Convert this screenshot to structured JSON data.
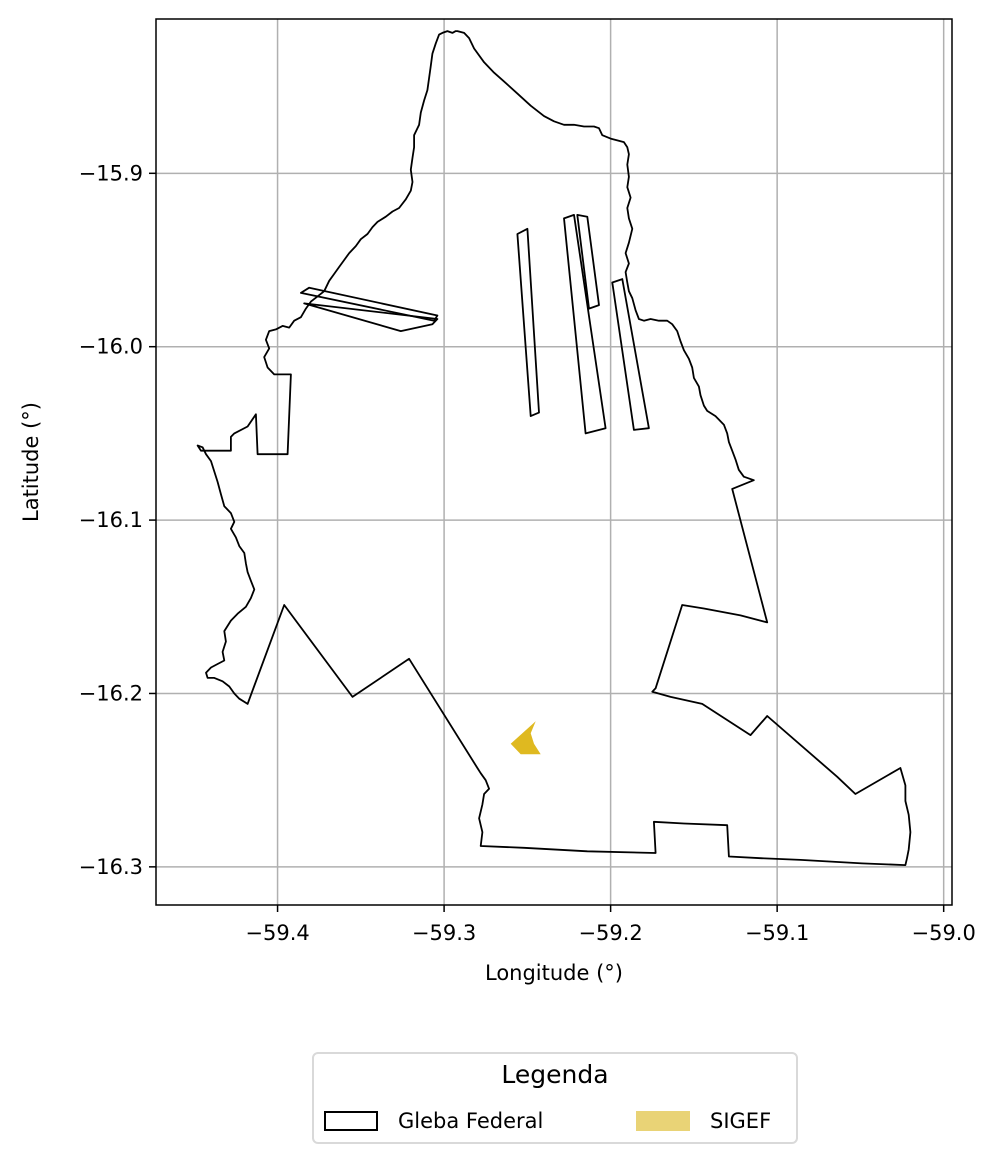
{
  "chart_data": {
    "type": "map",
    "xlabel": "Longitude (°)",
    "ylabel": "Latitude (°)",
    "xlim": [
      -59.473,
      -58.995
    ],
    "ylim": [
      -16.322,
      -15.811
    ],
    "xticks": [
      -59.4,
      -59.3,
      -59.2,
      -59.1,
      -59.0
    ],
    "yticks": [
      -15.9,
      -16.0,
      -16.1,
      -16.2,
      -16.3
    ],
    "xtick_labels": [
      "−59.4",
      "−59.3",
      "−59.2",
      "−59.1",
      "−59.0"
    ],
    "ytick_labels": [
      "−15.9",
      "−16.0",
      "−16.1",
      "−16.2",
      "−16.3"
    ],
    "grid": true,
    "legend_placement": "below",
    "layers": [
      {
        "name": "Gleba Federal",
        "fill": "none",
        "stroke": "#000000",
        "polygons": [
          [
            [
              -59.301,
              -15.819
            ],
            [
              -59.298,
              -15.818
            ],
            [
              -59.295,
              -15.819
            ],
            [
              -59.293,
              -15.818
            ],
            [
              -59.292,
              -15.818
            ],
            [
              -59.288,
              -15.819
            ],
            [
              -59.285,
              -15.822
            ],
            [
              -59.282,
              -15.828
            ],
            [
              -59.276,
              -15.836
            ],
            [
              -59.27,
              -15.842
            ],
            [
              -59.264,
              -15.847
            ],
            [
              -59.256,
              -15.854
            ],
            [
              -59.248,
              -15.861
            ],
            [
              -59.24,
              -15.867
            ],
            [
              -59.234,
              -15.87
            ],
            [
              -59.228,
              -15.872
            ],
            [
              -59.222,
              -15.872
            ],
            [
              -59.216,
              -15.873
            ],
            [
              -59.21,
              -15.873
            ],
            [
              -59.207,
              -15.874
            ],
            [
              -59.205,
              -15.878
            ],
            [
              -59.2,
              -15.88
            ],
            [
              -59.196,
              -15.881
            ],
            [
              -59.192,
              -15.882
            ],
            [
              -59.19,
              -15.885
            ],
            [
              -59.189,
              -15.889
            ],
            [
              -59.19,
              -15.895
            ],
            [
              -59.189,
              -15.902
            ],
            [
              -59.19,
              -15.908
            ],
            [
              -59.188,
              -15.914
            ],
            [
              -59.19,
              -15.92
            ],
            [
              -59.189,
              -15.926
            ],
            [
              -59.187,
              -15.932
            ],
            [
              -59.189,
              -15.94
            ],
            [
              -59.191,
              -15.946
            ],
            [
              -59.189,
              -15.952
            ],
            [
              -59.191,
              -15.957
            ],
            [
              -59.19,
              -15.963
            ],
            [
              -59.189,
              -15.968
            ],
            [
              -59.187,
              -15.972
            ],
            [
              -59.185,
              -15.979
            ],
            [
              -59.183,
              -15.984
            ],
            [
              -59.18,
              -15.985
            ],
            [
              -59.176,
              -15.984
            ],
            [
              -59.171,
              -15.985
            ],
            [
              -59.166,
              -15.985
            ],
            [
              -59.163,
              -15.987
            ],
            [
              -59.16,
              -15.991
            ],
            [
              -59.158,
              -15.997
            ],
            [
              -59.156,
              -16.002
            ],
            [
              -59.153,
              -16.007
            ],
            [
              -59.151,
              -16.012
            ],
            [
              -59.15,
              -16.018
            ],
            [
              -59.147,
              -16.023
            ],
            [
              -59.146,
              -16.028
            ],
            [
              -59.144,
              -16.034
            ],
            [
              -59.142,
              -16.037
            ],
            [
              -59.137,
              -16.04
            ],
            [
              -59.132,
              -16.045
            ],
            [
              -59.13,
              -16.05
            ],
            [
              -59.129,
              -16.055
            ],
            [
              -59.127,
              -16.06
            ],
            [
              -59.125,
              -16.065
            ],
            [
              -59.123,
              -16.071
            ],
            [
              -59.12,
              -16.075
            ],
            [
              -59.114,
              -16.077
            ],
            [
              -59.127,
              -16.082
            ],
            [
              -59.106,
              -16.159
            ],
            [
              -59.122,
              -16.155
            ],
            [
              -59.144,
              -16.151
            ],
            [
              -59.157,
              -16.149
            ],
            [
              -59.173,
              -16.197
            ],
            [
              -59.175,
              -16.199
            ],
            [
              -59.164,
              -16.202
            ],
            [
              -59.145,
              -16.206
            ],
            [
              -59.116,
              -16.224
            ],
            [
              -59.106,
              -16.213
            ],
            [
              -59.064,
              -16.248
            ],
            [
              -59.053,
              -16.258
            ],
            [
              -59.026,
              -16.243
            ],
            [
              -59.023,
              -16.253
            ],
            [
              -59.023,
              -16.262
            ],
            [
              -59.021,
              -16.27
            ],
            [
              -59.02,
              -16.28
            ],
            [
              -59.021,
              -16.29
            ],
            [
              -59.022,
              -16.295
            ],
            [
              -59.023,
              -16.299
            ],
            [
              -59.049,
              -16.298
            ],
            [
              -59.086,
              -16.296
            ],
            [
              -59.11,
              -16.295
            ],
            [
              -59.129,
              -16.294
            ],
            [
              -59.13,
              -16.276
            ],
            [
              -59.156,
              -16.275
            ],
            [
              -59.174,
              -16.274
            ],
            [
              -59.173,
              -16.292
            ],
            [
              -59.214,
              -16.291
            ],
            [
              -59.252,
              -16.289
            ],
            [
              -59.278,
              -16.288
            ],
            [
              -59.277,
              -16.28
            ],
            [
              -59.279,
              -16.272
            ],
            [
              -59.277,
              -16.264
            ],
            [
              -59.276,
              -16.258
            ],
            [
              -59.273,
              -16.255
            ],
            [
              -59.275,
              -16.25
            ],
            [
              -59.278,
              -16.246
            ],
            [
              -59.28,
              -16.243
            ],
            [
              -59.321,
              -16.18
            ],
            [
              -59.355,
              -16.202
            ],
            [
              -59.396,
              -16.149
            ],
            [
              -59.418,
              -16.206
            ],
            [
              -59.423,
              -16.203
            ],
            [
              -59.426,
              -16.2
            ],
            [
              -59.429,
              -16.196
            ],
            [
              -59.433,
              -16.193
            ],
            [
              -59.438,
              -16.191
            ],
            [
              -59.442,
              -16.191
            ],
            [
              -59.443,
              -16.188
            ],
            [
              -59.44,
              -16.185
            ],
            [
              -59.436,
              -16.183
            ],
            [
              -59.432,
              -16.181
            ],
            [
              -59.433,
              -16.176
            ],
            [
              -59.431,
              -16.17
            ],
            [
              -59.432,
              -16.164
            ],
            [
              -59.428,
              -16.158
            ],
            [
              -59.424,
              -16.154
            ],
            [
              -59.419,
              -16.15
            ],
            [
              -59.416,
              -16.145
            ],
            [
              -59.414,
              -16.14
            ],
            [
              -59.416,
              -16.135
            ],
            [
              -59.418,
              -16.13
            ],
            [
              -59.419,
              -16.125
            ],
            [
              -59.42,
              -16.119
            ],
            [
              -59.423,
              -16.115
            ],
            [
              -59.425,
              -16.11
            ],
            [
              -59.428,
              -16.105
            ],
            [
              -59.426,
              -16.101
            ],
            [
              -59.428,
              -16.096
            ],
            [
              -59.432,
              -16.092
            ],
            [
              -59.434,
              -16.085
            ],
            [
              -59.436,
              -16.078
            ],
            [
              -59.438,
              -16.072
            ],
            [
              -59.44,
              -16.066
            ],
            [
              -59.443,
              -16.062
            ],
            [
              -59.445,
              -16.058
            ],
            [
              -59.448,
              -16.057
            ],
            [
              -59.446,
              -16.06
            ],
            [
              -59.428,
              -16.06
            ],
            [
              -59.428,
              -16.052
            ],
            [
              -59.426,
              -16.05
            ],
            [
              -59.418,
              -16.046
            ],
            [
              -59.413,
              -16.039
            ],
            [
              -59.412,
              -16.062
            ],
            [
              -59.394,
              -16.062
            ],
            [
              -59.392,
              -16.016
            ],
            [
              -59.402,
              -16.016
            ],
            [
              -59.406,
              -16.012
            ],
            [
              -59.408,
              -16.006
            ],
            [
              -59.405,
              -16.001
            ],
            [
              -59.407,
              -15.996
            ],
            [
              -59.405,
              -15.991
            ],
            [
              -59.401,
              -15.99
            ],
            [
              -59.397,
              -15.988
            ],
            [
              -59.393,
              -15.989
            ],
            [
              -59.39,
              -15.985
            ],
            [
              -59.386,
              -15.983
            ],
            [
              -59.383,
              -15.978
            ],
            [
              -59.38,
              -15.974
            ],
            [
              -59.376,
              -15.971
            ],
            [
              -59.372,
              -15.968
            ],
            [
              -59.369,
              -15.962
            ],
            [
              -59.366,
              -15.958
            ],
            [
              -59.363,
              -15.954
            ],
            [
              -59.36,
              -15.95
            ],
            [
              -59.357,
              -15.946
            ],
            [
              -59.353,
              -15.942
            ],
            [
              -59.35,
              -15.938
            ],
            [
              -59.346,
              -15.935
            ],
            [
              -59.343,
              -15.931
            ],
            [
              -59.34,
              -15.928
            ],
            [
              -59.335,
              -15.925
            ],
            [
              -59.331,
              -15.922
            ],
            [
              -59.327,
              -15.92
            ],
            [
              -59.323,
              -15.915
            ],
            [
              -59.32,
              -15.91
            ],
            [
              -59.319,
              -15.905
            ],
            [
              -59.32,
              -15.898
            ],
            [
              -59.319,
              -15.891
            ],
            [
              -59.318,
              -15.885
            ],
            [
              -59.318,
              -15.878
            ],
            [
              -59.315,
              -15.872
            ],
            [
              -59.314,
              -15.865
            ],
            [
              -59.312,
              -15.858
            ],
            [
              -59.31,
              -15.852
            ],
            [
              -59.309,
              -15.845
            ],
            [
              -59.308,
              -15.838
            ],
            [
              -59.307,
              -15.831
            ],
            [
              -59.305,
              -15.825
            ],
            [
              -59.303,
              -15.82
            ],
            [
              -59.301,
              -15.819
            ]
          ],
          [
            [
              -59.384,
              -15.975
            ],
            [
              -59.304,
              -15.984
            ],
            [
              -59.307,
              -15.987
            ],
            [
              -59.326,
              -15.991
            ],
            [
              -59.384,
              -15.975
            ]
          ],
          [
            [
              -59.381,
              -15.966
            ],
            [
              -59.304,
              -15.982
            ],
            [
              -59.306,
              -15.985
            ],
            [
              -59.386,
              -15.969
            ],
            [
              -59.381,
              -15.966
            ]
          ],
          [
            [
              -59.256,
              -15.935
            ],
            [
              -59.25,
              -15.932
            ],
            [
              -59.243,
              -16.038
            ],
            [
              -59.248,
              -16.04
            ],
            [
              -59.256,
              -15.935
            ]
          ],
          [
            [
              -59.228,
              -15.926
            ],
            [
              -59.222,
              -15.924
            ],
            [
              -59.203,
              -16.047
            ],
            [
              -59.215,
              -16.05
            ],
            [
              -59.228,
              -15.926
            ]
          ],
          [
            [
              -59.22,
              -15.924
            ],
            [
              -59.214,
              -15.925
            ],
            [
              -59.207,
              -15.976
            ],
            [
              -59.213,
              -15.978
            ],
            [
              -59.22,
              -15.924
            ]
          ],
          [
            [
              -59.199,
              -15.963
            ],
            [
              -59.193,
              -15.961
            ],
            [
              -59.177,
              -16.047
            ],
            [
              -59.186,
              -16.048
            ],
            [
              -59.199,
              -15.963
            ]
          ]
        ]
      },
      {
        "name": "SIGEF",
        "fill": "#dfb920",
        "stroke": "none",
        "polygons": [
          [
            [
              -59.26,
              -16.229
            ],
            [
              -59.245,
              -16.216
            ],
            [
              -59.248,
              -16.223
            ],
            [
              -59.246,
              -16.229
            ],
            [
              -59.242,
              -16.235
            ],
            [
              -59.254,
              -16.235
            ],
            [
              -59.26,
              -16.229
            ]
          ]
        ]
      }
    ]
  },
  "legend": {
    "title": "Legenda",
    "items": [
      {
        "label": "Gleba Federal",
        "swatch_fill": "#ffffff",
        "swatch_stroke": "#000000"
      },
      {
        "label": "SIGEF",
        "swatch_fill": "#e9d376",
        "swatch_stroke": "none"
      }
    ]
  }
}
